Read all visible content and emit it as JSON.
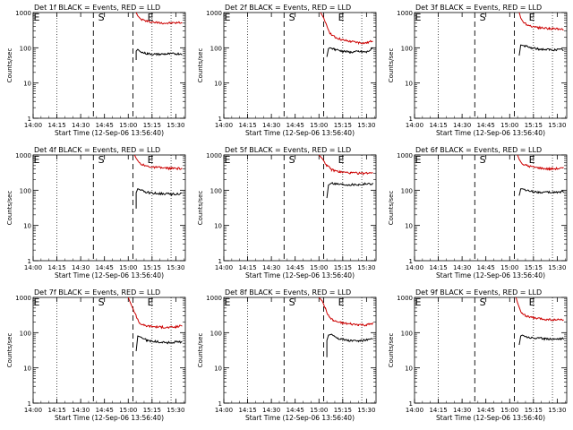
{
  "chart_data": [
    {
      "type": "line",
      "title": "Det 1f BLACK = Events, RED = LLD",
      "xlabel": "Start Time (12-Sep-06 13:56:40)",
      "ylabel": "Counts/sec",
      "yscale": "log",
      "ylim": [
        1,
        1000
      ],
      "xlim": [
        "14:00",
        "15:36"
      ],
      "x_ticks": [
        "14:00",
        "14:15",
        "14:30",
        "14:45",
        "15:00",
        "15:15",
        "15:30"
      ],
      "y_ticks": [
        "1",
        "10",
        "100",
        "1000"
      ],
      "markers": [
        {
          "label": "E",
          "time": "14:00"
        },
        {
          "label": "S",
          "time": "14:43"
        },
        {
          "label": "E",
          "time": "15:14"
        }
      ],
      "series": [
        {
          "color": "#cc0000",
          "time": [
            "15:05",
            "15:06",
            "15:08",
            "15:12",
            "15:18",
            "15:25",
            "15:34"
          ],
          "values": [
            1000,
            800,
            650,
            560,
            520,
            500,
            520
          ]
        },
        {
          "color": "#000000",
          "time": [
            "15:05",
            "15:05",
            "15:06",
            "15:08",
            "15:12",
            "15:18",
            "15:25",
            "15:34"
          ],
          "values": [
            45,
            80,
            90,
            75,
            68,
            65,
            67,
            68
          ]
        }
      ]
    },
    {
      "type": "line",
      "title": "Det 2f BLACK = Events, RED = LLD",
      "xlabel": "Start Time (12-Sep-06 13:56:40)",
      "ylabel": "Counts/sec",
      "yscale": "log",
      "ylim": [
        1,
        1000
      ],
      "xlim": [
        "14:00",
        "15:36"
      ],
      "x_ticks": [
        "14:00",
        "14:15",
        "14:30",
        "14:45",
        "15:00",
        "15:15",
        "15:30"
      ],
      "y_ticks": [
        "1",
        "10",
        "100",
        "1000"
      ],
      "markers": [
        {
          "label": "E",
          "time": "14:00"
        },
        {
          "label": "S",
          "time": "14:43"
        },
        {
          "label": "E",
          "time": "15:14"
        }
      ],
      "series": [
        {
          "color": "#cc0000",
          "time": [
            "15:01",
            "15:03",
            "15:05",
            "15:07",
            "15:10",
            "15:15",
            "15:20",
            "15:25",
            "15:30",
            "15:34"
          ],
          "values": [
            1000,
            700,
            400,
            260,
            200,
            165,
            150,
            140,
            135,
            160
          ]
        },
        {
          "color": "#000000",
          "time": [
            "15:05",
            "15:06",
            "15:07",
            "15:10",
            "15:15",
            "15:20",
            "15:25",
            "15:30",
            "15:34"
          ],
          "values": [
            55,
            95,
            100,
            90,
            80,
            75,
            78,
            75,
            95
          ]
        }
      ]
    },
    {
      "type": "line",
      "title": "Det 3f BLACK = Events, RED = LLD",
      "xlabel": "Start Time (12-Sep-06 13:56:40)",
      "ylabel": "Counts/sec",
      "yscale": "log",
      "ylim": [
        1,
        1000
      ],
      "xlim": [
        "14:00",
        "15:36"
      ],
      "x_ticks": [
        "14:00",
        "14:15",
        "14:30",
        "14:45",
        "15:00",
        "15:15",
        "15:30"
      ],
      "y_ticks": [
        "1",
        "10",
        "100",
        "1000"
      ],
      "markers": [
        {
          "label": "E",
          "time": "14:00"
        },
        {
          "label": "S",
          "time": "14:43"
        },
        {
          "label": "E",
          "time": "15:14"
        }
      ],
      "series": [
        {
          "color": "#cc0000",
          "time": [
            "15:06",
            "15:07",
            "15:09",
            "15:13",
            "15:18",
            "15:25",
            "15:34"
          ],
          "values": [
            1000,
            700,
            500,
            420,
            380,
            350,
            340
          ]
        },
        {
          "color": "#000000",
          "time": [
            "15:06",
            "15:07",
            "15:09",
            "15:13",
            "15:18",
            "15:25",
            "15:34"
          ],
          "values": [
            60,
            120,
            115,
            100,
            92,
            88,
            88
          ]
        }
      ]
    },
    {
      "type": "line",
      "title": "Det 4f BLACK = Events, RED = LLD",
      "xlabel": "Start Time (12-Sep-06 13:56:40)",
      "ylabel": "Counts/sec",
      "yscale": "log",
      "ylim": [
        1,
        1000
      ],
      "xlim": [
        "14:00",
        "15:36"
      ],
      "x_ticks": [
        "14:00",
        "14:15",
        "14:30",
        "14:45",
        "15:00",
        "15:15",
        "15:30"
      ],
      "y_ticks": [
        "1",
        "10",
        "100",
        "1000"
      ],
      "markers": [
        {
          "label": "E",
          "time": "14:00"
        },
        {
          "label": "S",
          "time": "14:43"
        },
        {
          "label": "E",
          "time": "15:14"
        }
      ],
      "series": [
        {
          "color": "#cc0000",
          "time": [
            "15:04",
            "15:05",
            "15:07",
            "15:10",
            "15:16",
            "15:24",
            "15:34"
          ],
          "values": [
            1000,
            800,
            600,
            500,
            450,
            420,
            410
          ]
        },
        {
          "color": "#000000",
          "time": [
            "15:05",
            "15:05",
            "15:06",
            "15:09",
            "15:13",
            "15:20",
            "15:27",
            "15:34"
          ],
          "values": [
            30,
            85,
            110,
            95,
            85,
            80,
            78,
            80
          ]
        }
      ]
    },
    {
      "type": "line",
      "title": "Det 5f BLACK = Events, RED = LLD",
      "xlabel": "Start Time (12-Sep-06 13:56:40)",
      "ylabel": "Counts/sec",
      "yscale": "log",
      "ylim": [
        1,
        1000
      ],
      "xlim": [
        "14:00",
        "15:36"
      ],
      "x_ticks": [
        "14:00",
        "14:15",
        "14:30",
        "14:45",
        "15:00",
        "15:15",
        "15:30"
      ],
      "y_ticks": [
        "1",
        "10",
        "100",
        "1000"
      ],
      "markers": [
        {
          "label": "E",
          "time": "14:00"
        },
        {
          "label": "S",
          "time": "14:43"
        },
        {
          "label": "E",
          "time": "15:14"
        }
      ],
      "series": [
        {
          "color": "#cc0000",
          "time": [
            "15:00",
            "15:02",
            "15:05",
            "15:08",
            "15:13",
            "15:20",
            "15:28",
            "15:34"
          ],
          "values": [
            1000,
            800,
            500,
            380,
            330,
            310,
            300,
            320
          ]
        },
        {
          "color": "#000000",
          "time": [
            "15:05",
            "15:06",
            "15:08",
            "15:12",
            "15:18",
            "15:25",
            "15:34"
          ],
          "values": [
            60,
            140,
            160,
            150,
            145,
            145,
            155
          ]
        }
      ]
    },
    {
      "type": "line",
      "title": "Det 6f BLACK = Events, RED = LLD",
      "xlabel": "Start Time (12-Sep-06 13:56:40)",
      "ylabel": "Counts/sec",
      "yscale": "log",
      "ylim": [
        1,
        1000
      ],
      "xlim": [
        "14:00",
        "15:36"
      ],
      "x_ticks": [
        "14:00",
        "14:15",
        "14:30",
        "14:45",
        "15:00",
        "15:15",
        "15:30"
      ],
      "y_ticks": [
        "1",
        "10",
        "100",
        "1000"
      ],
      "markers": [
        {
          "label": "E",
          "time": "14:00"
        },
        {
          "label": "S",
          "time": "14:43"
        },
        {
          "label": "E",
          "time": "15:14"
        }
      ],
      "series": [
        {
          "color": "#cc0000",
          "time": [
            "15:05",
            "15:06",
            "15:08",
            "15:12",
            "15:18",
            "15:25",
            "15:34"
          ],
          "values": [
            1000,
            750,
            550,
            480,
            430,
            400,
            420
          ]
        },
        {
          "color": "#000000",
          "time": [
            "15:06",
            "15:07",
            "15:08",
            "15:12",
            "15:18",
            "15:25",
            "15:34"
          ],
          "values": [
            70,
            110,
            110,
            95,
            88,
            86,
            90
          ]
        }
      ]
    },
    {
      "type": "line",
      "title": "Det 7f BLACK = Events, RED = LLD",
      "xlabel": "Start Time (12-Sep-06 13:56:40)",
      "ylabel": "Counts/sec",
      "yscale": "log",
      "ylim": [
        1,
        1000
      ],
      "xlim": [
        "14:00",
        "15:36"
      ],
      "x_ticks": [
        "14:00",
        "14:15",
        "14:30",
        "14:45",
        "15:00",
        "15:15",
        "15:30"
      ],
      "y_ticks": [
        "1",
        "10",
        "100",
        "1000"
      ],
      "markers": [
        {
          "label": "E",
          "time": "14:00"
        },
        {
          "label": "S",
          "time": "14:43"
        },
        {
          "label": "E",
          "time": "15:14"
        }
      ],
      "series": [
        {
          "color": "#cc0000",
          "time": [
            "15:00",
            "15:02",
            "15:05",
            "15:07",
            "15:10",
            "15:15",
            "15:20",
            "15:25",
            "15:30",
            "15:34"
          ],
          "values": [
            1000,
            600,
            300,
            190,
            160,
            150,
            145,
            140,
            145,
            160
          ]
        },
        {
          "color": "#000000",
          "time": [
            "15:05",
            "15:06",
            "15:08",
            "15:12",
            "15:18",
            "15:25",
            "15:34"
          ],
          "values": [
            30,
            80,
            75,
            60,
            55,
            52,
            55
          ]
        }
      ]
    },
    {
      "type": "line",
      "title": "Det 8f BLACK = Events, RED = LLD",
      "xlabel": "Start Time (12-Sep-06 13:56:40)",
      "ylabel": "Counts/sec",
      "yscale": "log",
      "ylim": [
        1,
        1000
      ],
      "xlim": [
        "14:00",
        "15:36"
      ],
      "x_ticks": [
        "14:00",
        "14:15",
        "14:30",
        "14:45",
        "15:00",
        "15:15",
        "15:30"
      ],
      "y_ticks": [
        "1",
        "10",
        "100",
        "1000"
      ],
      "markers": [
        {
          "label": "E",
          "time": "14:00"
        },
        {
          "label": "S",
          "time": "14:43"
        },
        {
          "label": "E",
          "time": "15:14"
        }
      ],
      "series": [
        {
          "color": "#cc0000",
          "time": [
            "15:00",
            "15:02",
            "15:04",
            "15:06",
            "15:09",
            "15:14",
            "15:20",
            "15:25",
            "15:30",
            "15:34"
          ],
          "values": [
            1000,
            800,
            500,
            300,
            220,
            190,
            175,
            170,
            165,
            185
          ]
        },
        {
          "color": "#000000",
          "time": [
            "15:05",
            "15:05",
            "15:06",
            "15:08",
            "15:12",
            "15:18",
            "15:25",
            "15:34"
          ],
          "values": [
            20,
            60,
            85,
            90,
            70,
            60,
            58,
            65
          ]
        }
      ]
    },
    {
      "type": "line",
      "title": "Det 9f BLACK = Events, RED = LLD",
      "xlabel": "Start Time (12-Sep-06 13:56:40)",
      "ylabel": "Counts/sec",
      "yscale": "log",
      "ylim": [
        1,
        1000
      ],
      "xlim": [
        "14:00",
        "15:36"
      ],
      "x_ticks": [
        "14:00",
        "14:15",
        "14:30",
        "14:45",
        "15:00",
        "15:15",
        "15:30"
      ],
      "y_ticks": [
        "1",
        "10",
        "100",
        "1000"
      ],
      "markers": [
        {
          "label": "E",
          "time": "14:00"
        },
        {
          "label": "S",
          "time": "14:43"
        },
        {
          "label": "E",
          "time": "15:14"
        }
      ],
      "series": [
        {
          "color": "#cc0000",
          "time": [
            "15:04",
            "15:05",
            "15:07",
            "15:10",
            "15:15",
            "15:22",
            "15:28",
            "15:34"
          ],
          "values": [
            1000,
            700,
            400,
            300,
            260,
            240,
            230,
            235
          ]
        },
        {
          "color": "#000000",
          "time": [
            "15:06",
            "15:07",
            "15:08",
            "15:11",
            "15:16",
            "15:22",
            "15:28",
            "15:34"
          ],
          "values": [
            45,
            80,
            85,
            75,
            70,
            68,
            66,
            68
          ]
        }
      ]
    }
  ]
}
